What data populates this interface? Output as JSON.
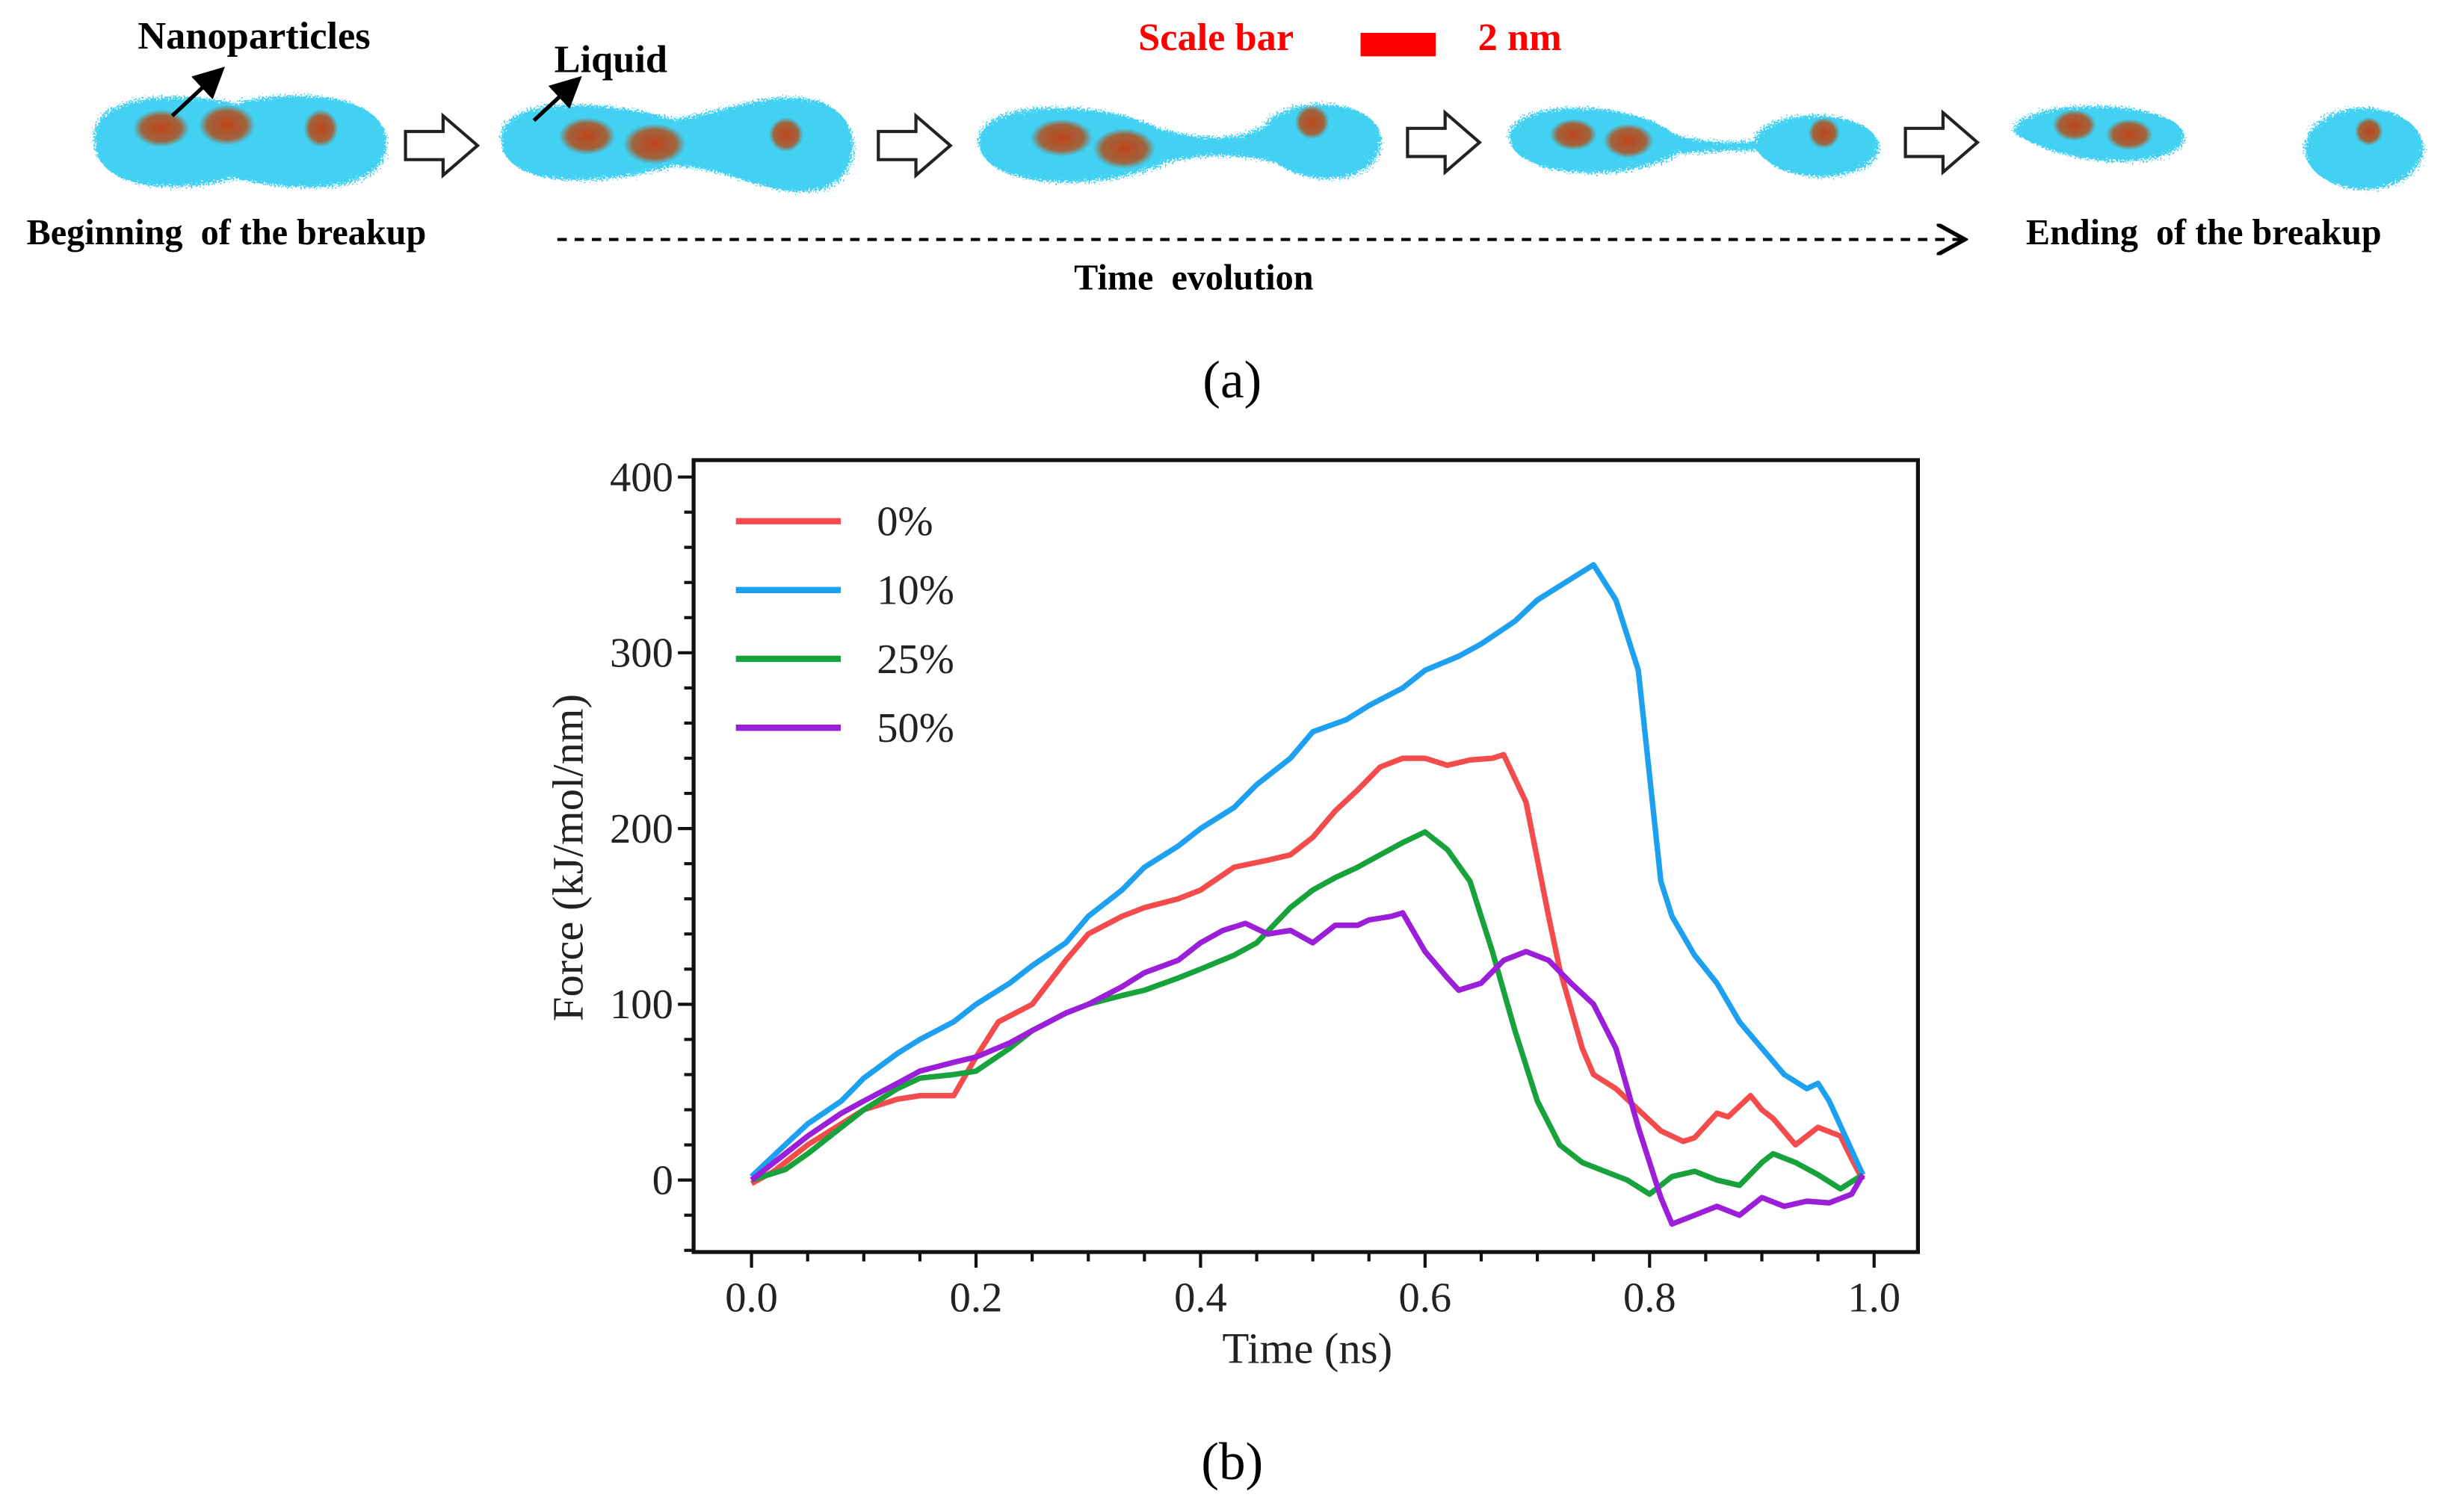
{
  "panel_a": {
    "label": "(a)",
    "nanoparticles_label": "Nanoparticles",
    "liquid_label": "Liquid",
    "scale_bar_label": "Scale bar",
    "scale_bar_value": "2 nm",
    "beginning_label": "Beginning  of the breakup",
    "ending_label": "Ending  of the breakup",
    "time_label": "Time  evolution",
    "colors": {
      "liquid": "#22c8f0",
      "nanoparticle": "#b5471a",
      "scale_bar": "#ff0000"
    }
  },
  "panel_b": {
    "label": "(b)"
  },
  "chart_data": {
    "type": "line",
    "title": "",
    "xlabel": "Time (ns)",
    "ylabel": "Force (kJ/mol/nm)",
    "xlim": [
      -0.05,
      1.04
    ],
    "ylim": [
      -42,
      408
    ],
    "xticks": [
      "0.0",
      "0.2",
      "0.4",
      "0.6",
      "0.8",
      "1.0"
    ],
    "yticks": [
      "0",
      "100",
      "200",
      "300",
      "400"
    ],
    "grid": false,
    "legend_position": "top-left",
    "series": [
      {
        "name": "0%",
        "color": "#f44c4c",
        "x": [
          0,
          0.02,
          0.05,
          0.08,
          0.1,
          0.13,
          0.15,
          0.18,
          0.2,
          0.22,
          0.25,
          0.28,
          0.3,
          0.33,
          0.35,
          0.38,
          0.4,
          0.43,
          0.46,
          0.48,
          0.5,
          0.52,
          0.54,
          0.56,
          0.58,
          0.6,
          0.62,
          0.64,
          0.66,
          0.67,
          0.69,
          0.71,
          0.72,
          0.74,
          0.75,
          0.77,
          0.79,
          0.81,
          0.83,
          0.84,
          0.86,
          0.87,
          0.89,
          0.9,
          0.91,
          0.93,
          0.94,
          0.95,
          0.97,
          0.98,
          0.99
        ],
        "y": [
          -2,
          5,
          20,
          32,
          40,
          46,
          48,
          48,
          70,
          90,
          100,
          125,
          140,
          150,
          155,
          160,
          165,
          178,
          182,
          185,
          195,
          210,
          222,
          235,
          240,
          240,
          236,
          239,
          240,
          242,
          215,
          150,
          120,
          75,
          60,
          52,
          40,
          28,
          22,
          24,
          38,
          36,
          48,
          40,
          35,
          20,
          25,
          30,
          25,
          12,
          0
        ]
      },
      {
        "name": "10%",
        "color": "#1ea0f0",
        "x": [
          0,
          0.03,
          0.05,
          0.08,
          0.1,
          0.13,
          0.15,
          0.18,
          0.2,
          0.23,
          0.25,
          0.28,
          0.3,
          0.33,
          0.35,
          0.38,
          0.4,
          0.43,
          0.45,
          0.48,
          0.5,
          0.53,
          0.55,
          0.58,
          0.6,
          0.63,
          0.65,
          0.68,
          0.7,
          0.73,
          0.75,
          0.77,
          0.79,
          0.8,
          0.81,
          0.82,
          0.84,
          0.86,
          0.88,
          0.9,
          0.92,
          0.94,
          0.95,
          0.96,
          0.99
        ],
        "y": [
          2,
          20,
          32,
          45,
          58,
          72,
          80,
          90,
          100,
          112,
          122,
          135,
          150,
          165,
          178,
          190,
          200,
          212,
          225,
          240,
          255,
          262,
          270,
          280,
          290,
          298,
          305,
          318,
          330,
          342,
          350,
          330,
          290,
          230,
          170,
          150,
          128,
          112,
          90,
          75,
          60,
          52,
          55,
          45,
          3
        ]
      },
      {
        "name": "25%",
        "color": "#17a23b",
        "x": [
          0,
          0.03,
          0.05,
          0.08,
          0.1,
          0.13,
          0.15,
          0.18,
          0.2,
          0.23,
          0.25,
          0.28,
          0.3,
          0.33,
          0.35,
          0.38,
          0.4,
          0.43,
          0.45,
          0.48,
          0.5,
          0.52,
          0.54,
          0.56,
          0.58,
          0.6,
          0.62,
          0.64,
          0.66,
          0.68,
          0.7,
          0.72,
          0.74,
          0.76,
          0.78,
          0.8,
          0.82,
          0.84,
          0.86,
          0.88,
          0.9,
          0.91,
          0.93,
          0.95,
          0.97,
          0.99
        ],
        "y": [
          0,
          6,
          15,
          30,
          40,
          52,
          58,
          60,
          62,
          75,
          85,
          95,
          100,
          105,
          108,
          115,
          120,
          128,
          135,
          155,
          165,
          172,
          178,
          185,
          192,
          198,
          188,
          170,
          130,
          85,
          45,
          20,
          10,
          5,
          0,
          -8,
          2,
          5,
          0,
          -3,
          10,
          15,
          10,
          3,
          -5,
          3
        ]
      },
      {
        "name": "50%",
        "color": "#9b1ed8",
        "x": [
          0,
          0.03,
          0.05,
          0.08,
          0.1,
          0.13,
          0.15,
          0.18,
          0.2,
          0.23,
          0.25,
          0.28,
          0.3,
          0.33,
          0.35,
          0.38,
          0.4,
          0.42,
          0.44,
          0.46,
          0.48,
          0.5,
          0.52,
          0.54,
          0.55,
          0.57,
          0.58,
          0.6,
          0.62,
          0.63,
          0.65,
          0.67,
          0.69,
          0.71,
          0.73,
          0.75,
          0.77,
          0.79,
          0.81,
          0.82,
          0.84,
          0.86,
          0.88,
          0.9,
          0.92,
          0.94,
          0.96,
          0.98,
          0.99
        ],
        "y": [
          0,
          15,
          25,
          38,
          45,
          55,
          62,
          67,
          70,
          78,
          85,
          95,
          100,
          110,
          118,
          125,
          135,
          142,
          146,
          140,
          142,
          135,
          145,
          145,
          148,
          150,
          152,
          130,
          115,
          108,
          112,
          125,
          130,
          125,
          112,
          100,
          75,
          30,
          -10,
          -25,
          -20,
          -15,
          -20,
          -10,
          -15,
          -12,
          -13,
          -8,
          3
        ]
      }
    ]
  }
}
